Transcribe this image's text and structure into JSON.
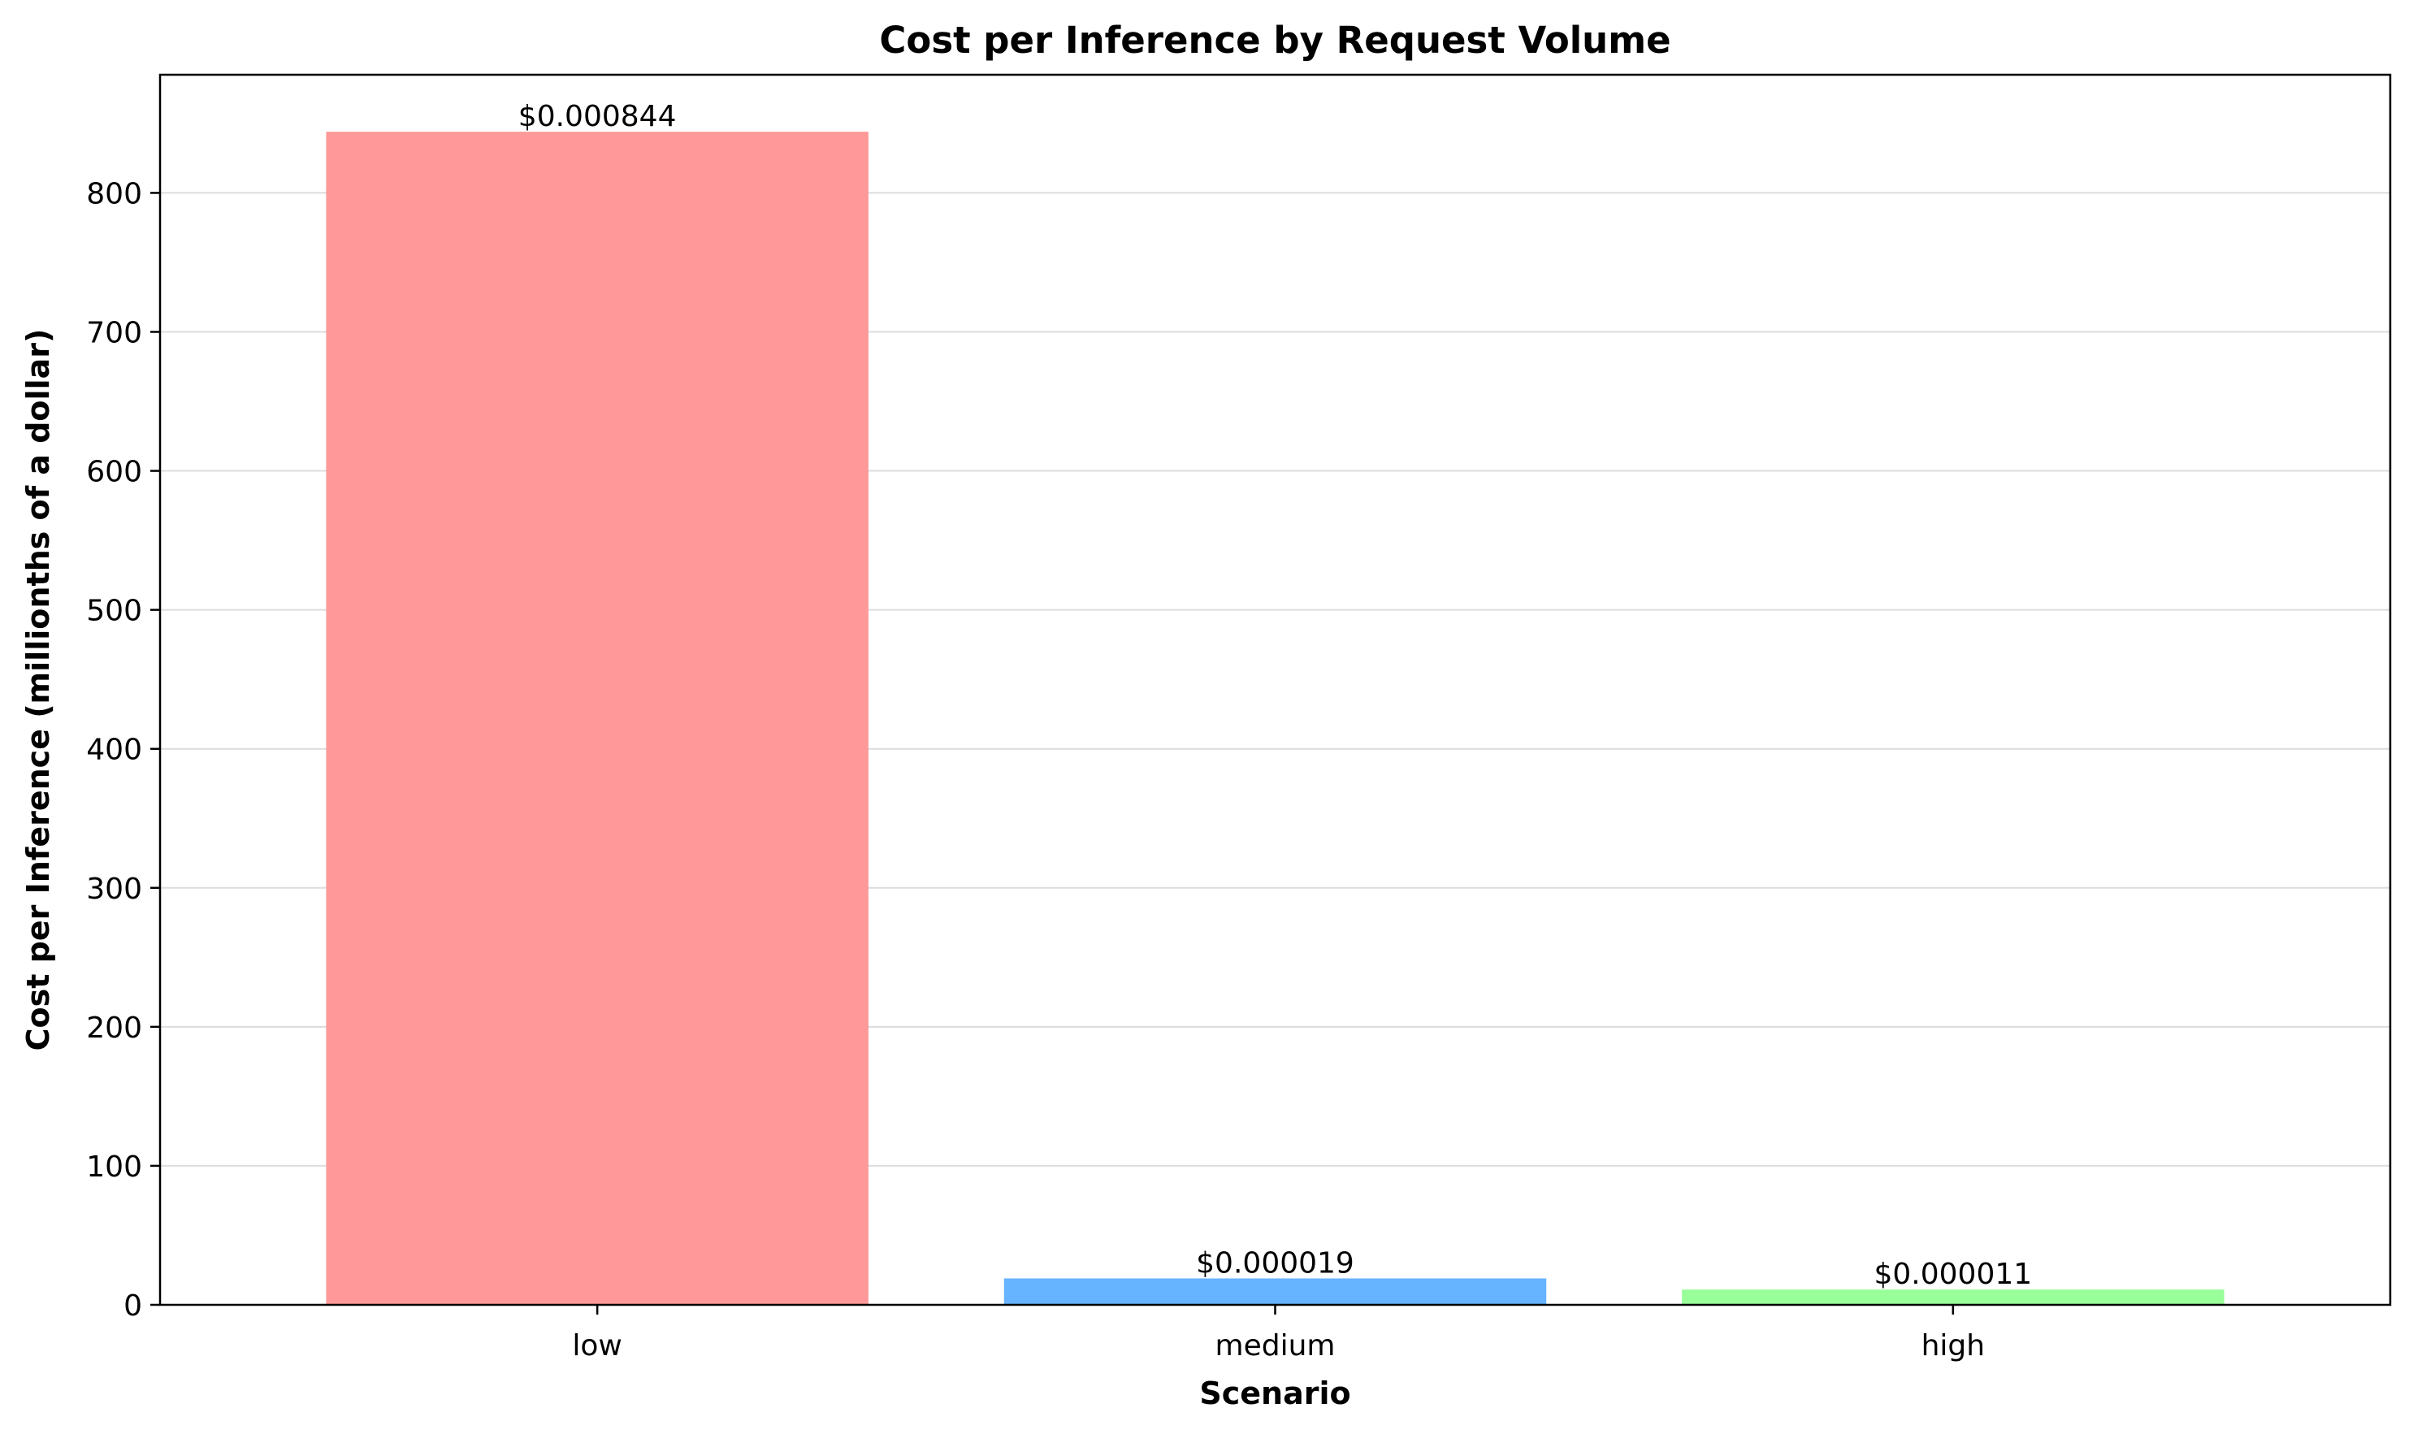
{
  "chart_data": {
    "type": "bar",
    "title": "Cost per Inference by Request Volume",
    "xlabel": "Scenario",
    "ylabel": "Cost per Inference (millionths of a dollar)",
    "categories": [
      "low",
      "medium",
      "high"
    ],
    "values": [
      844,
      19,
      11
    ],
    "data_labels": [
      "$0.000844",
      "$0.000019",
      "$0.000011"
    ],
    "colors": [
      "#ff9999",
      "#66b3ff",
      "#99ff99"
    ],
    "ylim": [
      0,
      885
    ],
    "yticks": [
      0,
      100,
      200,
      300,
      400,
      500,
      600,
      700,
      800
    ],
    "grid": "y",
    "legend": "none"
  }
}
